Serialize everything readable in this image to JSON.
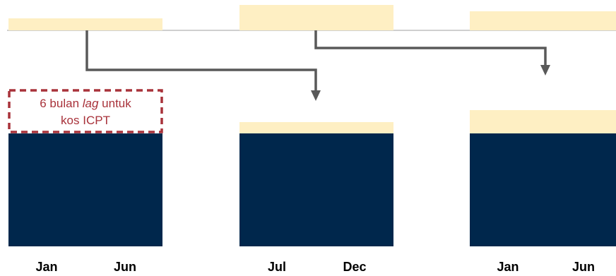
{
  "colors": {
    "navy": "#00274C",
    "cream": "#FEEFC3",
    "arrow": "#595959",
    "divider": "#BFBFBF",
    "note_border": "#A8323A",
    "note_text": "#A8323A",
    "label_text": "#000000"
  },
  "note": {
    "line1_prefix": "6 bulan ",
    "line1_italic": "lag",
    "line1_suffix": " untuk",
    "line2": "kos ICPT"
  },
  "periods": [
    {
      "start_label": "Jan",
      "end_label": "Jun"
    },
    {
      "start_label": "Jul",
      "end_label": "Dec"
    },
    {
      "start_label": "Jan",
      "end_label": "Jun"
    }
  ],
  "icons": {
    "arrow_head": "arrow-down-icon"
  }
}
